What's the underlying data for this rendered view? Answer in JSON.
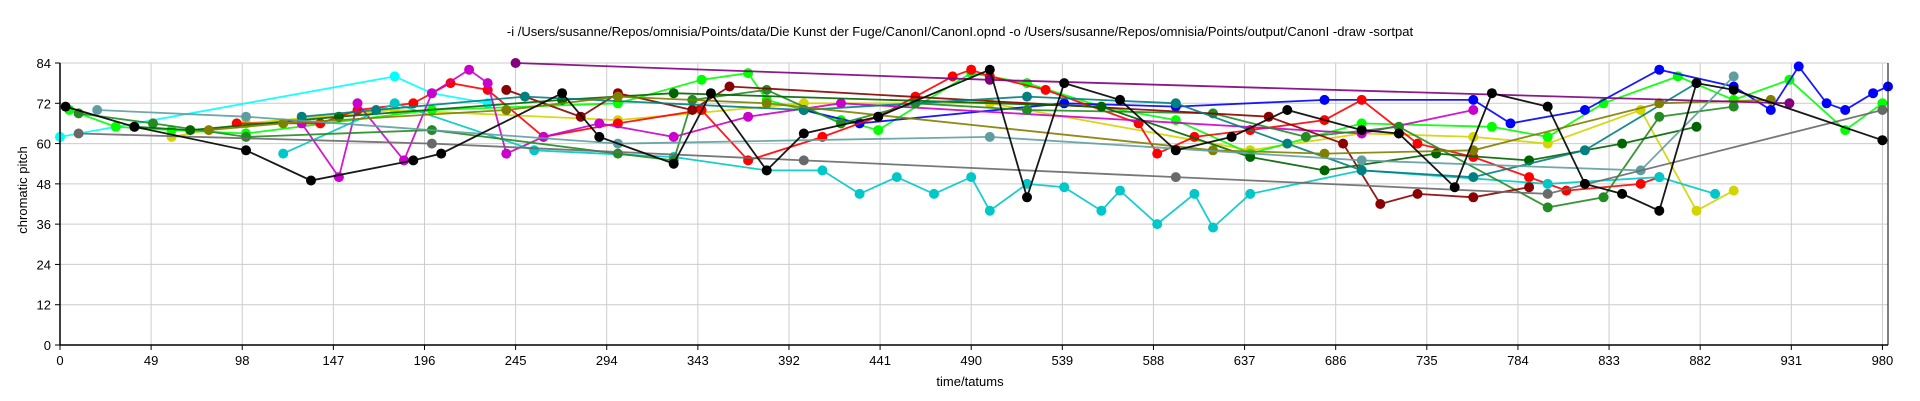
{
  "chart_data": {
    "type": "scatter",
    "title": "-i /Users/susanne/Repos/omnisia/Points/data/Die Kunst der Fuge/CanonI/CanonI.opnd -o /Users/susanne/Repos/omnisia/Points/output/CanonI -draw -sortpat",
    "xlabel": "time/tatums",
    "ylabel": "chromatic pitch",
    "xlim": [
      0,
      983
    ],
    "ylim": [
      0,
      84
    ],
    "xticks": [
      0,
      49,
      98,
      147,
      196,
      245,
      294,
      343,
      392,
      441,
      490,
      539,
      588,
      637,
      686,
      735,
      784,
      833,
      882,
      931,
      980
    ],
    "yticks": [
      0,
      12,
      24,
      36,
      48,
      60,
      72,
      84
    ],
    "grid": true,
    "series": [
      {
        "color": "#00ffff",
        "points": [
          [
            0,
            62
          ],
          [
            180,
            80
          ],
          [
            200,
            75
          ],
          [
            230,
            72
          ]
        ]
      },
      {
        "color": "#d4d400",
        "points": [
          [
            60,
            62
          ],
          [
            100,
            66
          ],
          [
            180,
            70
          ],
          [
            300,
            67
          ],
          [
            400,
            72
          ],
          [
            500,
            72
          ],
          [
            640,
            58
          ],
          [
            700,
            63
          ],
          [
            760,
            62
          ],
          [
            800,
            60
          ],
          [
            850,
            70
          ],
          [
            880,
            40
          ],
          [
            900,
            46
          ]
        ]
      },
      {
        "color": "#00ff00",
        "points": [
          [
            5,
            70
          ],
          [
            30,
            65
          ],
          [
            60,
            64
          ],
          [
            100,
            63
          ],
          [
            200,
            70
          ],
          [
            300,
            72
          ],
          [
            345,
            79
          ],
          [
            370,
            81
          ],
          [
            380,
            73
          ],
          [
            420,
            67
          ],
          [
            440,
            64
          ],
          [
            490,
            81
          ],
          [
            520,
            78
          ],
          [
            560,
            71
          ],
          [
            600,
            67
          ],
          [
            640,
            57
          ],
          [
            700,
            66
          ],
          [
            770,
            65
          ],
          [
            800,
            62
          ],
          [
            830,
            72
          ],
          [
            870,
            80
          ],
          [
            900,
            73
          ],
          [
            930,
            79
          ],
          [
            960,
            64
          ],
          [
            980,
            72
          ]
        ]
      },
      {
        "color": "#0000ff",
        "points": [
          [
            400,
            70
          ],
          [
            430,
            66
          ],
          [
            540,
            72
          ],
          [
            600,
            71
          ],
          [
            680,
            73
          ],
          [
            760,
            73
          ],
          [
            780,
            66
          ],
          [
            820,
            70
          ],
          [
            860,
            82
          ],
          [
            900,
            77
          ],
          [
            920,
            70
          ],
          [
            935,
            83
          ],
          [
            950,
            72
          ],
          [
            960,
            70
          ],
          [
            975,
            75
          ],
          [
            983,
            77
          ]
        ]
      },
      {
        "color": "#ff0000",
        "points": [
          [
            95,
            66
          ],
          [
            140,
            66
          ],
          [
            160,
            70
          ],
          [
            190,
            72
          ],
          [
            210,
            78
          ],
          [
            230,
            76
          ],
          [
            260,
            62
          ],
          [
            300,
            66
          ],
          [
            345,
            70
          ],
          [
            370,
            55
          ],
          [
            410,
            62
          ],
          [
            440,
            68
          ],
          [
            460,
            74
          ],
          [
            480,
            80
          ],
          [
            490,
            82
          ],
          [
            500,
            80
          ],
          [
            530,
            76
          ],
          [
            580,
            66
          ],
          [
            590,
            57
          ],
          [
            610,
            62
          ],
          [
            640,
            64
          ],
          [
            680,
            67
          ],
          [
            700,
            73
          ],
          [
            730,
            60
          ],
          [
            760,
            56
          ],
          [
            790,
            50
          ],
          [
            810,
            46
          ],
          [
            850,
            48
          ],
          [
            860,
            50
          ]
        ]
      },
      {
        "color": "#cc00cc",
        "points": [
          [
            130,
            66
          ],
          [
            150,
            50
          ],
          [
            160,
            72
          ],
          [
            185,
            55
          ],
          [
            200,
            75
          ],
          [
            220,
            82
          ],
          [
            230,
            78
          ],
          [
            240,
            57
          ],
          [
            260,
            62
          ],
          [
            290,
            66
          ],
          [
            330,
            62
          ],
          [
            370,
            68
          ],
          [
            420,
            72
          ],
          [
            700,
            63
          ],
          [
            760,
            70
          ]
        ]
      },
      {
        "color": "#00c8c8",
        "points": [
          [
            120,
            57
          ],
          [
            180,
            72
          ],
          [
            255,
            58
          ],
          [
            330,
            56
          ],
          [
            380,
            52
          ],
          [
            410,
            52
          ],
          [
            430,
            45
          ],
          [
            450,
            50
          ],
          [
            470,
            45
          ],
          [
            490,
            50
          ],
          [
            500,
            40
          ],
          [
            520,
            48
          ],
          [
            540,
            47
          ],
          [
            560,
            40
          ],
          [
            570,
            46
          ],
          [
            590,
            36
          ],
          [
            610,
            45
          ],
          [
            620,
            35
          ],
          [
            640,
            45
          ],
          [
            700,
            52
          ],
          [
            800,
            48
          ],
          [
            860,
            50
          ],
          [
            890,
            45
          ]
        ]
      },
      {
        "color": "#228b22",
        "points": [
          [
            10,
            69
          ],
          [
            50,
            66
          ],
          [
            100,
            62
          ],
          [
            200,
            64
          ],
          [
            300,
            57
          ],
          [
            330,
            55
          ],
          [
            340,
            73
          ],
          [
            380,
            76
          ],
          [
            420,
            66
          ],
          [
            460,
            72
          ],
          [
            520,
            70
          ],
          [
            620,
            69
          ],
          [
            670,
            62
          ],
          [
            720,
            65
          ],
          [
            800,
            41
          ],
          [
            830,
            44
          ],
          [
            860,
            68
          ],
          [
            900,
            71
          ]
        ]
      },
      {
        "color": "#8b0000",
        "points": [
          [
            240,
            76
          ],
          [
            280,
            68
          ],
          [
            300,
            75
          ],
          [
            340,
            70
          ],
          [
            360,
            77
          ],
          [
            650,
            68
          ],
          [
            690,
            60
          ],
          [
            710,
            42
          ],
          [
            730,
            45
          ],
          [
            760,
            44
          ],
          [
            790,
            47
          ]
        ]
      },
      {
        "color": "#006400",
        "points": [
          [
            40,
            65
          ],
          [
            70,
            64
          ],
          [
            150,
            68
          ],
          [
            270,
            73
          ],
          [
            330,
            75
          ],
          [
            560,
            71
          ],
          [
            640,
            56
          ],
          [
            680,
            52
          ],
          [
            740,
            57
          ],
          [
            790,
            55
          ],
          [
            840,
            60
          ],
          [
            880,
            65
          ]
        ]
      },
      {
        "color": "#008080",
        "points": [
          [
            130,
            68
          ],
          [
            170,
            70
          ],
          [
            250,
            74
          ],
          [
            400,
            70
          ],
          [
            520,
            74
          ],
          [
            600,
            72
          ],
          [
            660,
            60
          ],
          [
            700,
            52
          ],
          [
            760,
            50
          ],
          [
            820,
            58
          ],
          [
            880,
            78
          ]
        ]
      },
      {
        "color": "#808000",
        "points": [
          [
            80,
            64
          ],
          [
            120,
            66
          ],
          [
            240,
            70
          ],
          [
            300,
            74
          ],
          [
            380,
            72
          ],
          [
            620,
            58
          ],
          [
            680,
            57
          ],
          [
            760,
            58
          ],
          [
            860,
            72
          ],
          [
            920,
            73
          ]
        ]
      },
      {
        "color": "#800080",
        "points": [
          [
            245,
            84
          ],
          [
            500,
            79
          ],
          [
            930,
            72
          ]
        ]
      },
      {
        "color": "#5f9ea0",
        "points": [
          [
            20,
            70
          ],
          [
            100,
            68
          ],
          [
            300,
            60
          ],
          [
            500,
            62
          ],
          [
            700,
            55
          ],
          [
            850,
            52
          ],
          [
            900,
            80
          ]
        ]
      },
      {
        "color": "#696969",
        "points": [
          [
            10,
            63
          ],
          [
            200,
            60
          ],
          [
            400,
            55
          ],
          [
            600,
            50
          ],
          [
            800,
            45
          ],
          [
            980,
            70
          ]
        ]
      },
      {
        "color": "#000000",
        "points": [
          [
            3,
            71
          ],
          [
            40,
            65
          ],
          [
            100,
            58
          ],
          [
            135,
            49
          ],
          [
            190,
            55
          ],
          [
            205,
            57
          ],
          [
            270,
            75
          ],
          [
            290,
            62
          ],
          [
            330,
            54
          ],
          [
            350,
            75
          ],
          [
            380,
            52
          ],
          [
            400,
            63
          ],
          [
            440,
            68
          ],
          [
            500,
            82
          ],
          [
            520,
            44
          ],
          [
            540,
            78
          ],
          [
            570,
            73
          ],
          [
            600,
            58
          ],
          [
            630,
            62
          ],
          [
            660,
            70
          ],
          [
            700,
            64
          ],
          [
            720,
            63
          ],
          [
            750,
            47
          ],
          [
            770,
            75
          ],
          [
            800,
            71
          ],
          [
            820,
            48
          ],
          [
            840,
            45
          ],
          [
            860,
            40
          ],
          [
            880,
            78
          ],
          [
            900,
            76
          ],
          [
            980,
            61
          ]
        ]
      }
    ]
  }
}
